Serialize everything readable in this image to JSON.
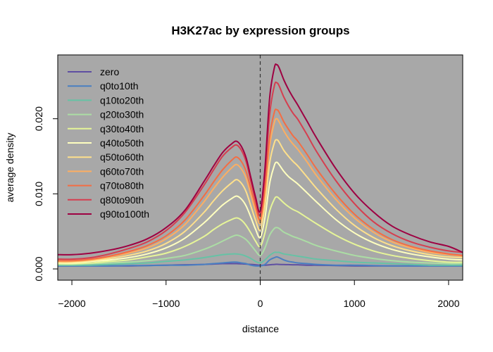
{
  "chart_data": {
    "type": "line",
    "title": "H3K27ac by expression groups",
    "xlabel": "distance",
    "ylabel": "average density",
    "xlim": [
      -2150,
      2150
    ],
    "ylim": [
      -0.0015,
      0.0285
    ],
    "x_ticks": [
      -2000,
      -1000,
      0,
      1000,
      2000
    ],
    "x_tick_labels": [
      "−2000",
      "−1000",
      "0",
      "1000",
      "2000"
    ],
    "y_ticks": [
      0.0,
      0.01,
      0.02
    ],
    "y_tick_labels": [
      "0.000",
      "0.010",
      "0.020"
    ],
    "background": "#a8a8a8",
    "legend_position": "top-left",
    "reference_line": {
      "x": 0,
      "style": "dashed"
    },
    "x": [
      -2150,
      -2000,
      -1800,
      -1600,
      -1400,
      -1200,
      -1000,
      -800,
      -600,
      -500,
      -400,
      -300,
      -250,
      -200,
      -150,
      -100,
      -50,
      0,
      50,
      100,
      150,
      175,
      200,
      250,
      300,
      350,
      400,
      500,
      600,
      800,
      1000,
      1200,
      1400,
      1600,
      1800,
      2000,
      2150
    ],
    "series": [
      {
        "name": "zero",
        "color": "#5e4fa2",
        "values": [
          0.0004,
          0.0004,
          0.0004,
          0.0004,
          0.0004,
          0.00045,
          0.0005,
          0.00055,
          0.0006,
          0.00065,
          0.0007,
          0.0007,
          0.0007,
          0.00068,
          0.00065,
          0.0006,
          0.00055,
          0.0005,
          0.0005,
          0.00055,
          0.0006,
          0.00062,
          0.0006,
          0.00058,
          0.00057,
          0.00055,
          0.00055,
          0.0005,
          0.0005,
          0.00045,
          0.0004,
          0.0004,
          0.0004,
          0.0004,
          0.0004,
          0.0004,
          0.0004
        ]
      },
      {
        "name": "q0to10th",
        "color": "#4a7fc1",
        "values": [
          0.0004,
          0.0004,
          0.0004,
          0.0004,
          0.00045,
          0.00045,
          0.0005,
          0.0005,
          0.0006,
          0.0007,
          0.0008,
          0.0009,
          0.0009,
          0.0008,
          0.0007,
          0.0005,
          0.0004,
          0.0004,
          0.0006,
          0.0012,
          0.0015,
          0.0016,
          0.0015,
          0.0012,
          0.001,
          0.0009,
          0.0008,
          0.0007,
          0.0006,
          0.0005,
          0.0005,
          0.00045,
          0.0004,
          0.0004,
          0.0004,
          0.0004,
          0.0004
        ]
      },
      {
        "name": "q10to20th",
        "color": "#66c2a5",
        "values": [
          0.0005,
          0.0005,
          0.0005,
          0.0006,
          0.0007,
          0.0008,
          0.001,
          0.0012,
          0.0015,
          0.0017,
          0.0019,
          0.002,
          0.002,
          0.0019,
          0.0017,
          0.0014,
          0.001,
          0.0008,
          0.0012,
          0.0018,
          0.0022,
          0.0022,
          0.0022,
          0.002,
          0.0019,
          0.0018,
          0.0017,
          0.0015,
          0.0013,
          0.0011,
          0.0009,
          0.0008,
          0.0007,
          0.0006,
          0.0005,
          0.0005,
          0.0005
        ]
      },
      {
        "name": "q20to30th",
        "color": "#abdda4",
        "values": [
          0.0006,
          0.0006,
          0.0007,
          0.0008,
          0.0009,
          0.0011,
          0.0014,
          0.0018,
          0.0026,
          0.0031,
          0.0037,
          0.0043,
          0.0045,
          0.0043,
          0.0039,
          0.0032,
          0.0024,
          0.0018,
          0.0028,
          0.0045,
          0.0054,
          0.0055,
          0.0054,
          0.0049,
          0.0046,
          0.0043,
          0.0041,
          0.0036,
          0.0031,
          0.0024,
          0.0018,
          0.0014,
          0.0011,
          0.0009,
          0.0008,
          0.0007,
          0.0007
        ]
      },
      {
        "name": "q30to40th",
        "color": "#e6f598",
        "values": [
          0.0007,
          0.0007,
          0.0008,
          0.001,
          0.0012,
          0.0016,
          0.0021,
          0.003,
          0.0043,
          0.0052,
          0.006,
          0.0066,
          0.0068,
          0.0065,
          0.0058,
          0.0048,
          0.0037,
          0.003,
          0.0048,
          0.0077,
          0.0093,
          0.0096,
          0.0094,
          0.0088,
          0.0083,
          0.0079,
          0.0076,
          0.0068,
          0.006,
          0.0045,
          0.0033,
          0.0024,
          0.0018,
          0.0014,
          0.0011,
          0.0009,
          0.0009
        ]
      },
      {
        "name": "q40to50th",
        "color": "#ffffbf",
        "values": [
          0.0008,
          0.0008,
          0.001,
          0.0012,
          0.0015,
          0.002,
          0.0028,
          0.0041,
          0.0061,
          0.0073,
          0.0085,
          0.0094,
          0.0097,
          0.0093,
          0.0084,
          0.0069,
          0.0053,
          0.0042,
          0.0068,
          0.0114,
          0.0138,
          0.0142,
          0.0139,
          0.013,
          0.0123,
          0.0118,
          0.0113,
          0.0101,
          0.0089,
          0.0066,
          0.0048,
          0.0035,
          0.0026,
          0.002,
          0.0016,
          0.0013,
          0.0012
        ]
      },
      {
        "name": "q50to60th",
        "color": "#fee08b",
        "values": [
          0.0009,
          0.0009,
          0.0011,
          0.0014,
          0.0018,
          0.0024,
          0.0034,
          0.005,
          0.0075,
          0.009,
          0.0104,
          0.0115,
          0.0119,
          0.0114,
          0.0103,
          0.0084,
          0.0065,
          0.0052,
          0.0085,
          0.0141,
          0.0168,
          0.0172,
          0.0169,
          0.0158,
          0.015,
          0.0143,
          0.0137,
          0.0122,
          0.0107,
          0.008,
          0.0058,
          0.0042,
          0.0031,
          0.0024,
          0.0019,
          0.0016,
          0.0015
        ]
      },
      {
        "name": "q60to70th",
        "color": "#fdae61",
        "values": [
          0.001,
          0.001,
          0.0012,
          0.0016,
          0.0021,
          0.0028,
          0.004,
          0.0059,
          0.0089,
          0.0106,
          0.0122,
          0.0135,
          0.0139,
          0.0133,
          0.0121,
          0.0099,
          0.0077,
          0.0061,
          0.01,
          0.0164,
          0.0195,
          0.02,
          0.0196,
          0.0184,
          0.0174,
          0.0166,
          0.0159,
          0.0142,
          0.0124,
          0.0093,
          0.0068,
          0.0049,
          0.0036,
          0.0028,
          0.0022,
          0.0019,
          0.0017
        ]
      },
      {
        "name": "q70to80th",
        "color": "#f46d43",
        "values": [
          0.0011,
          0.0011,
          0.0013,
          0.0017,
          0.0023,
          0.0031,
          0.0044,
          0.0065,
          0.0097,
          0.0115,
          0.0132,
          0.0145,
          0.0149,
          0.0143,
          0.013,
          0.0107,
          0.0084,
          0.0066,
          0.0108,
          0.0176,
          0.0209,
          0.0212,
          0.0209,
          0.0196,
          0.0186,
          0.0177,
          0.017,
          0.0152,
          0.0133,
          0.01,
          0.0073,
          0.0053,
          0.0039,
          0.003,
          0.0024,
          0.002,
          0.0018
        ]
      },
      {
        "name": "q80to90th",
        "color": "#d53e4f",
        "values": [
          0.0013,
          0.0013,
          0.0015,
          0.002,
          0.0027,
          0.0036,
          0.0051,
          0.0075,
          0.0111,
          0.0131,
          0.015,
          0.0162,
          0.0165,
          0.0158,
          0.0143,
          0.0117,
          0.0091,
          0.0072,
          0.0124,
          0.0206,
          0.0244,
          0.0248,
          0.0244,
          0.0229,
          0.0217,
          0.0207,
          0.0199,
          0.0178,
          0.0156,
          0.0118,
          0.0087,
          0.0063,
          0.0047,
          0.0036,
          0.0029,
          0.0024,
          0.0022
        ]
      },
      {
        "name": "q90to100th",
        "color": "#9e0142",
        "values": [
          0.0019,
          0.0019,
          0.0021,
          0.0025,
          0.0031,
          0.004,
          0.0055,
          0.0078,
          0.0116,
          0.0136,
          0.0155,
          0.0167,
          0.017,
          0.0163,
          0.0148,
          0.0122,
          0.0096,
          0.0077,
          0.0134,
          0.0228,
          0.0268,
          0.0272,
          0.0268,
          0.0252,
          0.0239,
          0.0228,
          0.0218,
          0.0196,
          0.0174,
          0.0134,
          0.0101,
          0.0076,
          0.0057,
          0.0045,
          0.0036,
          0.003,
          0.0022
        ]
      }
    ]
  }
}
